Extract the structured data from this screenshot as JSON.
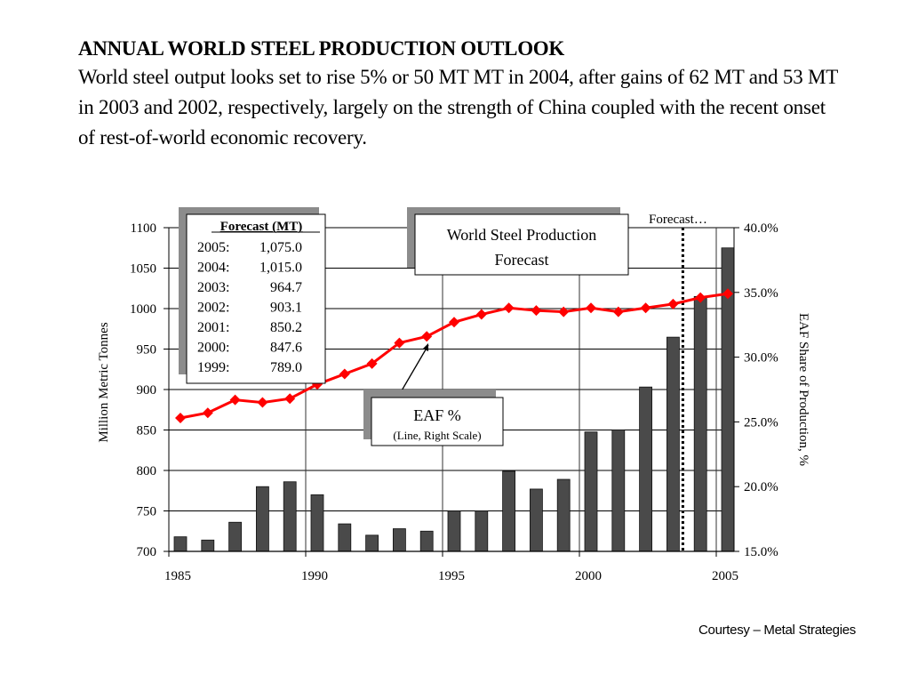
{
  "heading": {
    "title": "ANNUAL WORLD STEEL PRODUCTION OUTLOOK",
    "body": "World steel output looks set to rise 5% or 50 MT MT in 2004, after gains of 62 MT and 53 MT in 2003 and 2002, respectively, largely on the strength of China coupled with the recent onset of rest-of-world economic recovery."
  },
  "courtesy": "Courtesy – Metal Strategies",
  "colors": {
    "bar": "#4a4a4a",
    "line": "#ff0000",
    "shadow": "#8c8c8c",
    "grid": "#000000"
  },
  "chart_data": {
    "type": "bar",
    "title": "World Steel Production Forecast",
    "xlabel": "",
    "ylabel": "Million Metric Tonnes",
    "y2label": "EAF Share of Production, %",
    "ylim": [
      700,
      1100
    ],
    "y2lim": [
      15.0,
      40.0
    ],
    "yticks": [
      "700",
      "750",
      "800",
      "850",
      "900",
      "950",
      "1000",
      "1050",
      "1100"
    ],
    "y2ticks": [
      "15.0%",
      "20.0%",
      "25.0%",
      "30.0%",
      "35.0%",
      "40.0%"
    ],
    "xticks": [
      "1985",
      "1990",
      "1995",
      "2000",
      "2005"
    ],
    "grid": true,
    "categories": [
      "1985",
      "1986",
      "1987",
      "1988",
      "1989",
      "1990",
      "1991",
      "1992",
      "1993",
      "1994",
      "1995",
      "1996",
      "1997",
      "1998",
      "1999",
      "2000",
      "2001",
      "2002",
      "2003",
      "2004",
      "2005"
    ],
    "series": [
      {
        "name": "World Steel Production (MT)",
        "type": "bar",
        "axis": "left",
        "values": [
          718,
          714,
          736,
          780,
          786,
          770,
          734,
          720,
          728,
          725,
          750,
          750,
          799,
          777,
          789.0,
          847.6,
          850.2,
          903.1,
          964.7,
          1015.0,
          1075.0
        ]
      },
      {
        "name": "EAF %",
        "type": "line",
        "axis": "right",
        "values": [
          25.3,
          25.7,
          26.7,
          26.5,
          26.8,
          27.9,
          28.7,
          29.5,
          31.1,
          31.6,
          32.7,
          33.3,
          33.8,
          33.6,
          33.5,
          33.8,
          33.5,
          33.8,
          34.1,
          34.6,
          34.9
        ]
      }
    ],
    "forecast_divider": {
      "after_year": "2003",
      "label": "Forecast…"
    },
    "annotations": {
      "forecast_table": {
        "heading": "Forecast (MT)",
        "rows": [
          {
            "year": "2005:",
            "value": "1,075.0"
          },
          {
            "year": "2004:",
            "value": "1,015.0"
          },
          {
            "year": "2003:",
            "value": "964.7"
          },
          {
            "year": "2002:",
            "value": "903.1"
          },
          {
            "year": "2001:",
            "value": "850.2"
          },
          {
            "year": "2000:",
            "value": "847.6"
          },
          {
            "year": "1999:",
            "value": "789.0"
          }
        ]
      },
      "title_box": {
        "line1": "World Steel Production",
        "line2": "Forecast"
      },
      "eaf_box": {
        "line1": "EAF %",
        "line2": "(Line, Right Scale)"
      }
    }
  }
}
